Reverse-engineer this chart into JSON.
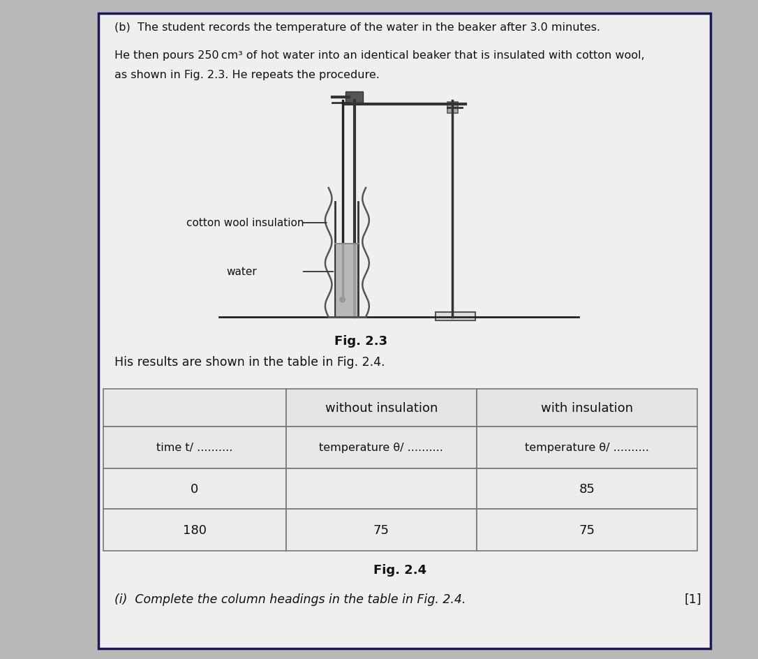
{
  "bg_color": "#b8b8b8",
  "panel_color": "#efefef",
  "panel_border_color": "#1a1a5a",
  "text_color": "#111111",
  "title_b": "(b)  The student records the temperature of the water in the beaker after 3.0 minutes.",
  "para1": "He then pours 250 cm³ of hot water into an identical beaker that is insulated with cotton wool,",
  "para2": "as shown in Fig. 2.3. He repeats the procedure.",
  "fig23_label": "Fig. 2.3",
  "fig24_label": "Fig. 2.4",
  "results_text": "His results are shown in the table in Fig. 2.4.",
  "question_i": "(i)  Complete the column headings in the table in Fig. 2.4.",
  "mark": "[1]",
  "col_header_left": "without insulation",
  "col_header_right": "with insulation",
  "row_header": "time t/ ..........",
  "subrow_left": "temperature θ/ ..........",
  "subrow_right": "temperature θ/ ..........",
  "data_rows": [
    [
      "0",
      "",
      "85"
    ],
    [
      "180",
      "75",
      "75"
    ]
  ],
  "cotton_wool_label": "cotton wool insulation",
  "water_label": "water"
}
